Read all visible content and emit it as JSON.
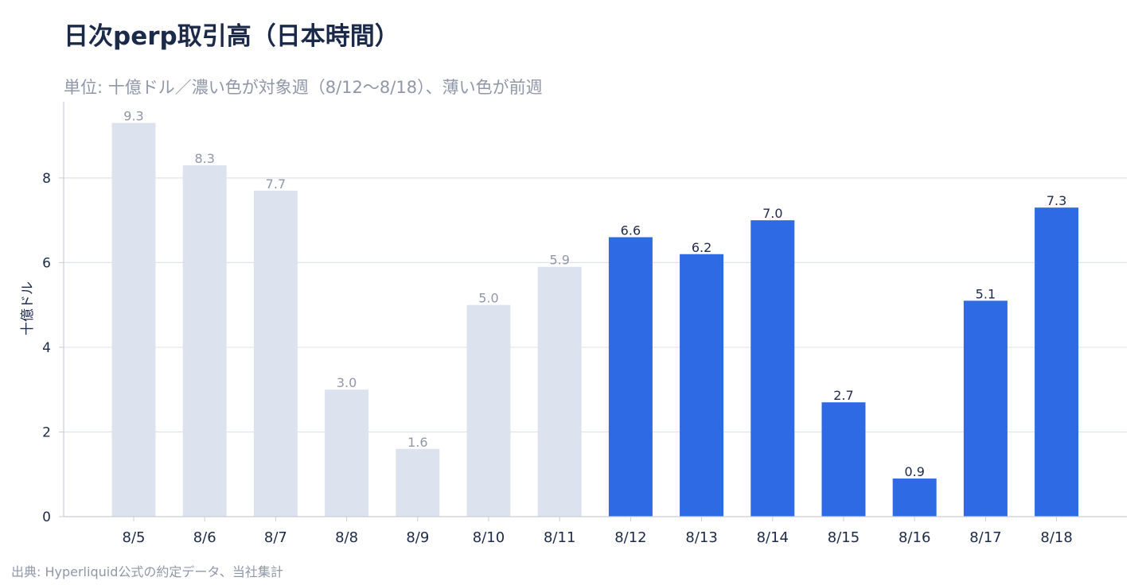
{
  "chart_data": {
    "type": "bar",
    "title": "日次perp取引高（日本時間）",
    "subtitle": "単位: 十億ドル／濃い色が対象週（8/12〜8/18）、薄い色が前週",
    "ylabel": "十億ドル",
    "xlabel": "",
    "source": "出典: Hyperliquid公式の約定データ、当社集計",
    "categories": [
      "8/5",
      "8/6",
      "8/7",
      "8/8",
      "8/9",
      "8/10",
      "8/11",
      "8/12",
      "8/13",
      "8/14",
      "8/15",
      "8/16",
      "8/17",
      "8/18"
    ],
    "values": [
      9.3,
      8.3,
      7.7,
      3.0,
      1.6,
      5.0,
      5.9,
      6.6,
      6.2,
      7.0,
      2.7,
      0.9,
      5.1,
      7.3
    ],
    "value_labels": [
      "9.3",
      "8.3",
      "7.7",
      "3.0",
      "1.6",
      "5.0",
      "5.9",
      "6.6",
      "6.2",
      "7.0",
      "2.7",
      "0.9",
      "5.1",
      "7.3"
    ],
    "highlight": [
      false,
      false,
      false,
      false,
      false,
      false,
      false,
      true,
      true,
      true,
      true,
      true,
      true,
      true
    ],
    "ylim": [
      0,
      9.8
    ],
    "yticks": [
      0,
      2,
      4,
      6,
      8
    ],
    "ytick_labels": [
      "0",
      "2",
      "4",
      "6",
      "8"
    ],
    "grid": true,
    "legend": "none",
    "colors": {
      "target_week": "#2d6ae3",
      "previous_week": "#dde3ee",
      "target_label": "#1c2a4a",
      "previous_label": "#8f97a8",
      "grid": "#dfe3ea",
      "axis": "#c9ced8",
      "tick_text": "#1c2a4a"
    }
  }
}
